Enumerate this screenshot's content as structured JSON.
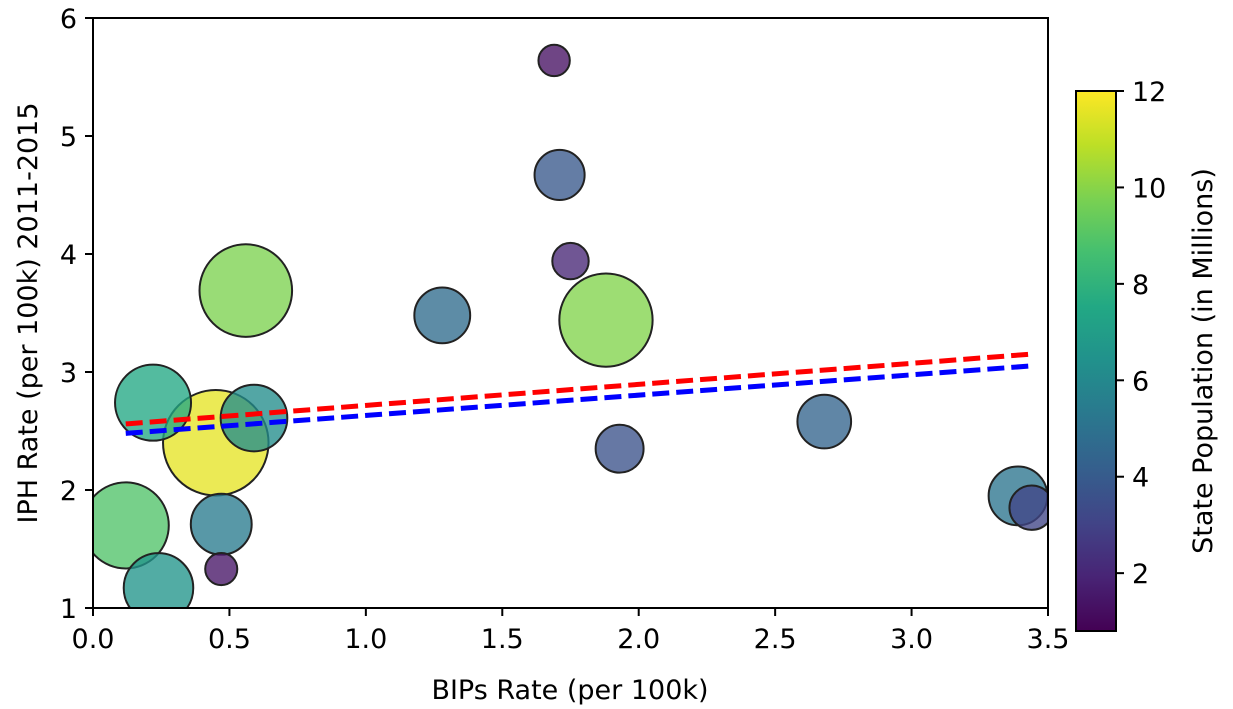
{
  "chart_data": {
    "type": "scatter",
    "xlabel": "BIPs Rate (per 100k)",
    "ylabel": "IPH Rate (per 100k) 2011-2015",
    "xlim": [
      0.0,
      3.5
    ],
    "ylim": [
      1,
      6
    ],
    "xticks": [
      "0.0",
      "0.5",
      "1.0",
      "1.5",
      "2.0",
      "2.5",
      "3.0",
      "3.5"
    ],
    "yticks": [
      "1",
      "2",
      "3",
      "4",
      "5",
      "6"
    ],
    "grid": false,
    "colorbar": {
      "label": "State Population (in Millions)",
      "colormap": "viridis",
      "range": [
        0.8,
        12
      ],
      "ticks": [
        "2",
        "4",
        "6",
        "8",
        "10",
        "12"
      ]
    },
    "points": [
      {
        "x": 0.12,
        "y": 1.7,
        "population": 8.9
      },
      {
        "x": 0.22,
        "y": 2.74,
        "population": 7.5
      },
      {
        "x": 0.24,
        "y": 1.17,
        "population": 6.6
      },
      {
        "x": 0.45,
        "y": 2.4,
        "population": 11.6
      },
      {
        "x": 0.47,
        "y": 1.71,
        "population": 5.4
      },
      {
        "x": 0.47,
        "y": 1.33,
        "population": 1.4
      },
      {
        "x": 0.56,
        "y": 3.69,
        "population": 9.8
      },
      {
        "x": 0.59,
        "y": 2.61,
        "population": 6.2
      },
      {
        "x": 1.28,
        "y": 3.48,
        "population": 4.7
      },
      {
        "x": 1.69,
        "y": 5.64,
        "population": 1.3
      },
      {
        "x": 1.71,
        "y": 4.67,
        "population": 3.9
      },
      {
        "x": 1.75,
        "y": 3.94,
        "population": 2.0
      },
      {
        "x": 1.88,
        "y": 3.44,
        "population": 9.9
      },
      {
        "x": 1.93,
        "y": 2.35,
        "population": 3.6
      },
      {
        "x": 2.68,
        "y": 2.58,
        "population": 4.4
      },
      {
        "x": 3.39,
        "y": 1.95,
        "population": 5.1
      },
      {
        "x": 3.44,
        "y": 1.85,
        "population": 3.1
      }
    ],
    "lines": [
      {
        "color": "#ff0000",
        "style": "dashed",
        "x": [
          0.12,
          3.43
        ],
        "y": [
          2.56,
          3.15
        ]
      },
      {
        "color": "#0000ff",
        "style": "dashed",
        "x": [
          0.12,
          3.43
        ],
        "y": [
          2.48,
          3.05
        ]
      }
    ]
  }
}
